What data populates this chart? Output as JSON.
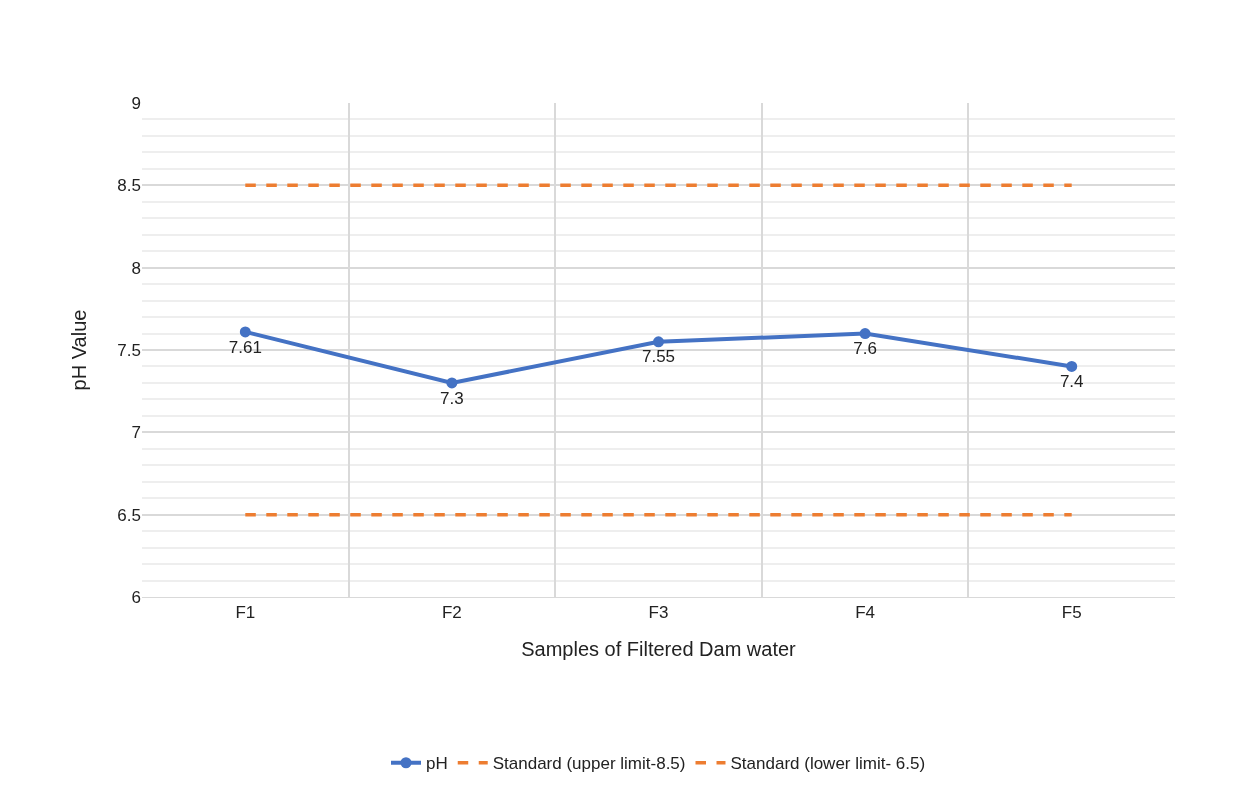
{
  "chart_data": {
    "type": "line",
    "xlabel": "Samples of Filtered Dam water",
    "ylabel": "pH Value",
    "categories": [
      "F1",
      "F2",
      "F3",
      "F4",
      "F5"
    ],
    "series": [
      {
        "name": "pH",
        "color": "#4472c4",
        "values": [
          7.61,
          7.3,
          7.55,
          7.6,
          7.4
        ],
        "marker": "circle",
        "line_style": "solid",
        "value_labels": [
          "7.61",
          "7.3",
          "7.55",
          "7.6",
          "7.4"
        ]
      },
      {
        "name": "Standard (upper limit-8.5)",
        "color": "#ed7d31",
        "values": [
          8.5,
          8.5,
          8.5,
          8.5,
          8.5
        ],
        "line_style": "dashed"
      },
      {
        "name": "Standard (lower limit- 6.5)",
        "color": "#ed7d31",
        "values": [
          6.5,
          6.5,
          6.5,
          6.5,
          6.5
        ],
        "line_style": "dashed"
      }
    ],
    "ylim": [
      6,
      9
    ],
    "yticks": [
      6,
      6.5,
      7,
      7.5,
      8,
      8.5,
      9
    ],
    "grid": true,
    "legend": "bottom"
  }
}
